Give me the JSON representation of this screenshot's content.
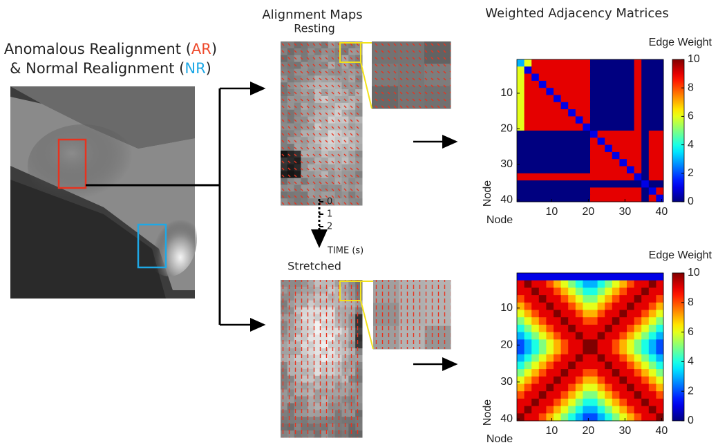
{
  "panel_a": {
    "line1": [
      "Anomalous Realignment (",
      "AR",
      ")"
    ],
    "line2": [
      "& Normal Realignment (",
      "NR",
      ")"
    ]
  },
  "panel_b": {
    "title": "Alignment Maps",
    "top_label": "Resting",
    "bottom_label": "Stretched",
    "time_ticks": [
      0,
      1,
      2
    ],
    "time_label": "TIME (s)"
  },
  "panel_c": {
    "title": "Weighted Adjacency Matrices"
  },
  "chart_data": [
    {
      "type": "heatmap",
      "colorbar_label": "Edge Weight",
      "xlabel": "Node",
      "ylabel": "Node",
      "x": [
        1.5,
        3.5,
        5.5,
        7.5,
        9.5,
        11.5,
        13.5,
        15.5,
        17.5,
        19.5,
        21.5,
        23.5,
        25.5,
        27.5,
        29.5,
        31.5,
        33.5,
        35.5,
        37.5,
        39.5
      ],
      "y": [
        1.5,
        3.5,
        5.5,
        7.5,
        9.5,
        11.5,
        13.5,
        15.5,
        17.5,
        19.5,
        21.5,
        23.5,
        25.5,
        27.5,
        29.5,
        31.5,
        33.5,
        35.5,
        37.5,
        39.5
      ],
      "values": [
        [
          3,
          6,
          9,
          9,
          9,
          9,
          9,
          9,
          9,
          9,
          0,
          0,
          0,
          0,
          0,
          0,
          9,
          0,
          0,
          0
        ],
        [
          6,
          1,
          9,
          9,
          9,
          9,
          9,
          9,
          9,
          9,
          0,
          0,
          0,
          0,
          0,
          0,
          9,
          0,
          0,
          0
        ],
        [
          6,
          9,
          1,
          9,
          9,
          9,
          9,
          9,
          9,
          9,
          0,
          0,
          0,
          0,
          0,
          0,
          9,
          0,
          0,
          0
        ],
        [
          6,
          9,
          9,
          1,
          9,
          9,
          9,
          9,
          9,
          9,
          0,
          0,
          0,
          0,
          0,
          0,
          9,
          0,
          0,
          0
        ],
        [
          6,
          9,
          9,
          9,
          1,
          9,
          9,
          9,
          9,
          9,
          0,
          0,
          0,
          0,
          0,
          0,
          9,
          0,
          0,
          0
        ],
        [
          6,
          9,
          9,
          9,
          9,
          1,
          9,
          9,
          9,
          9,
          0,
          0,
          0,
          0,
          0,
          0,
          9,
          0,
          0,
          0
        ],
        [
          6,
          9,
          9,
          9,
          9,
          9,
          1,
          9,
          9,
          9,
          0,
          0,
          0,
          0,
          0,
          0,
          9,
          0,
          0,
          0
        ],
        [
          6,
          9,
          9,
          9,
          9,
          9,
          9,
          1,
          9,
          9,
          0,
          0,
          0,
          0,
          0,
          0,
          9,
          0,
          0,
          0
        ],
        [
          6,
          9,
          9,
          9,
          9,
          9,
          9,
          9,
          1,
          9,
          0,
          0,
          0,
          0,
          0,
          0,
          9,
          0,
          0,
          0
        ],
        [
          6,
          9,
          9,
          9,
          9,
          9,
          9,
          9,
          9,
          1,
          0,
          0,
          0,
          0,
          0,
          0,
          9,
          0,
          0,
          0
        ],
        [
          0,
          0,
          0,
          0,
          0,
          0,
          0,
          0,
          0,
          0,
          1,
          9,
          9,
          9,
          9,
          9,
          9,
          0,
          9,
          9
        ],
        [
          0,
          0,
          0,
          0,
          0,
          0,
          0,
          0,
          0,
          0,
          9,
          1,
          9,
          9,
          9,
          9,
          9,
          0,
          9,
          9
        ],
        [
          0,
          0,
          0,
          0,
          0,
          0,
          0,
          0,
          0,
          0,
          9,
          9,
          1,
          9,
          9,
          9,
          9,
          0,
          9,
          9
        ],
        [
          0,
          0,
          0,
          0,
          0,
          0,
          0,
          0,
          0,
          0,
          9,
          9,
          9,
          1,
          9,
          9,
          9,
          0,
          9,
          9
        ],
        [
          0,
          0,
          0,
          0,
          0,
          0,
          0,
          0,
          0,
          0,
          9,
          9,
          9,
          9,
          1,
          9,
          9,
          0,
          9,
          9
        ],
        [
          0,
          0,
          0,
          0,
          0,
          0,
          0,
          0,
          0,
          0,
          9,
          9,
          9,
          9,
          9,
          1,
          9,
          0,
          9,
          9
        ],
        [
          9,
          9,
          9,
          9,
          9,
          9,
          9,
          9,
          9,
          9,
          9,
          9,
          9,
          9,
          9,
          9,
          1,
          0,
          9,
          9
        ],
        [
          0,
          0,
          0,
          0,
          0,
          0,
          0,
          0,
          0,
          0,
          0,
          0,
          0,
          0,
          0,
          0,
          0,
          1,
          0,
          0
        ],
        [
          0,
          0,
          0,
          0,
          0,
          0,
          0,
          0,
          0,
          0,
          9,
          9,
          9,
          9,
          9,
          9,
          9,
          0,
          1,
          9
        ],
        [
          0,
          0,
          0,
          0,
          0,
          0,
          0,
          0,
          0,
          0,
          9,
          9,
          9,
          9,
          9,
          9,
          9,
          0,
          9,
          1
        ]
      ],
      "xlim": [
        0.5,
        40.5
      ],
      "ylim": [
        40.5,
        0.5
      ],
      "xticks": [
        10,
        20,
        30,
        40
      ],
      "yticks": [
        10,
        20,
        30,
        40
      ],
      "clim": [
        0,
        10
      ],
      "cticks": [
        0,
        2,
        4,
        6,
        8,
        10
      ],
      "colormap": "jet"
    },
    {
      "type": "heatmap",
      "colorbar_label": "Edge Weight",
      "xlabel": "Node",
      "ylabel": "Node",
      "x": [
        1.5,
        3.5,
        5.5,
        7.5,
        9.5,
        11.5,
        13.5,
        15.5,
        17.5,
        19.5,
        21.5,
        23.5,
        25.5,
        27.5,
        29.5,
        31.5,
        33.5,
        35.5,
        37.5,
        39.5
      ],
      "y": [
        1.5,
        3.5,
        5.5,
        7.5,
        9.5,
        11.5,
        13.5,
        15.5,
        17.5,
        19.5,
        21.5,
        23.5,
        25.5,
        27.5,
        29.5,
        31.5,
        33.5,
        35.5,
        37.5,
        39.5
      ],
      "values": [
        [
          1,
          1,
          1,
          1,
          1,
          1,
          1,
          1,
          1,
          1,
          1,
          1,
          1,
          1,
          1,
          1,
          1,
          1,
          1,
          1
        ],
        [
          9,
          10,
          9,
          9,
          8,
          7,
          6,
          5,
          4,
          3,
          3,
          4,
          5,
          6,
          7,
          8,
          9,
          9,
          10,
          9
        ],
        [
          9,
          9,
          10,
          9,
          9,
          8,
          7,
          6,
          5,
          4,
          4,
          5,
          6,
          7,
          8,
          9,
          9,
          10,
          9,
          9
        ],
        [
          8,
          9,
          9,
          10,
          9,
          9,
          8,
          7,
          6,
          5,
          5,
          6,
          7,
          8,
          9,
          9,
          10,
          9,
          9,
          8
        ],
        [
          7,
          8,
          9,
          9,
          10,
          9,
          9,
          8,
          7,
          6,
          6,
          7,
          8,
          9,
          9,
          10,
          9,
          9,
          8,
          7
        ],
        [
          6,
          7,
          8,
          9,
          9,
          10,
          9,
          9,
          8,
          7,
          7,
          8,
          9,
          9,
          10,
          9,
          9,
          8,
          7,
          6
        ],
        [
          5,
          6,
          7,
          8,
          9,
          9,
          10,
          9,
          9,
          8,
          8,
          9,
          9,
          10,
          9,
          9,
          8,
          7,
          6,
          5
        ],
        [
          4,
          5,
          6,
          7,
          8,
          9,
          9,
          10,
          9,
          9,
          9,
          9,
          10,
          9,
          9,
          8,
          7,
          6,
          5,
          4
        ],
        [
          3,
          4,
          5,
          6,
          7,
          8,
          9,
          9,
          10,
          9,
          9,
          10,
          9,
          9,
          8,
          7,
          6,
          5,
          4,
          3
        ],
        [
          2,
          3,
          4,
          5,
          6,
          7,
          8,
          9,
          9,
          10,
          10,
          9,
          9,
          8,
          7,
          6,
          5,
          4,
          3,
          2
        ],
        [
          2,
          3,
          4,
          5,
          6,
          7,
          8,
          9,
          9,
          10,
          10,
          9,
          9,
          8,
          7,
          6,
          5,
          4,
          3,
          2
        ],
        [
          3,
          4,
          5,
          6,
          7,
          8,
          9,
          9,
          10,
          9,
          9,
          10,
          9,
          9,
          8,
          7,
          6,
          5,
          4,
          3
        ],
        [
          4,
          5,
          6,
          7,
          8,
          9,
          9,
          10,
          9,
          9,
          9,
          9,
          10,
          9,
          9,
          8,
          7,
          6,
          5,
          4
        ],
        [
          5,
          6,
          7,
          8,
          9,
          9,
          10,
          9,
          9,
          8,
          8,
          9,
          9,
          10,
          9,
          9,
          8,
          7,
          6,
          5
        ],
        [
          6,
          7,
          8,
          9,
          9,
          10,
          9,
          9,
          8,
          7,
          7,
          8,
          9,
          9,
          10,
          9,
          9,
          8,
          7,
          6
        ],
        [
          7,
          8,
          9,
          9,
          10,
          9,
          9,
          8,
          7,
          6,
          6,
          7,
          8,
          9,
          9,
          10,
          9,
          9,
          8,
          7
        ],
        [
          8,
          9,
          9,
          10,
          9,
          9,
          8,
          7,
          6,
          5,
          5,
          6,
          7,
          8,
          9,
          9,
          10,
          9,
          9,
          8
        ],
        [
          9,
          9,
          10,
          9,
          9,
          8,
          7,
          6,
          5,
          4,
          4,
          5,
          6,
          7,
          8,
          9,
          9,
          10,
          9,
          9
        ],
        [
          9,
          10,
          9,
          9,
          8,
          7,
          6,
          5,
          4,
          3,
          3,
          4,
          5,
          6,
          7,
          8,
          9,
          9,
          10,
          9
        ],
        [
          10,
          9,
          9,
          8,
          7,
          6,
          5,
          4,
          3,
          2,
          2,
          3,
          4,
          5,
          6,
          7,
          8,
          9,
          9,
          10
        ]
      ],
      "xlim": [
        0.5,
        40.5
      ],
      "ylim": [
        40.5,
        0.5
      ],
      "xticks": [
        10,
        20,
        30,
        40
      ],
      "yticks": [
        10,
        20,
        30,
        40
      ],
      "clim": [
        0,
        10
      ],
      "cticks": [
        0,
        2,
        4,
        6,
        8,
        10
      ],
      "colormap": "jet"
    }
  ]
}
